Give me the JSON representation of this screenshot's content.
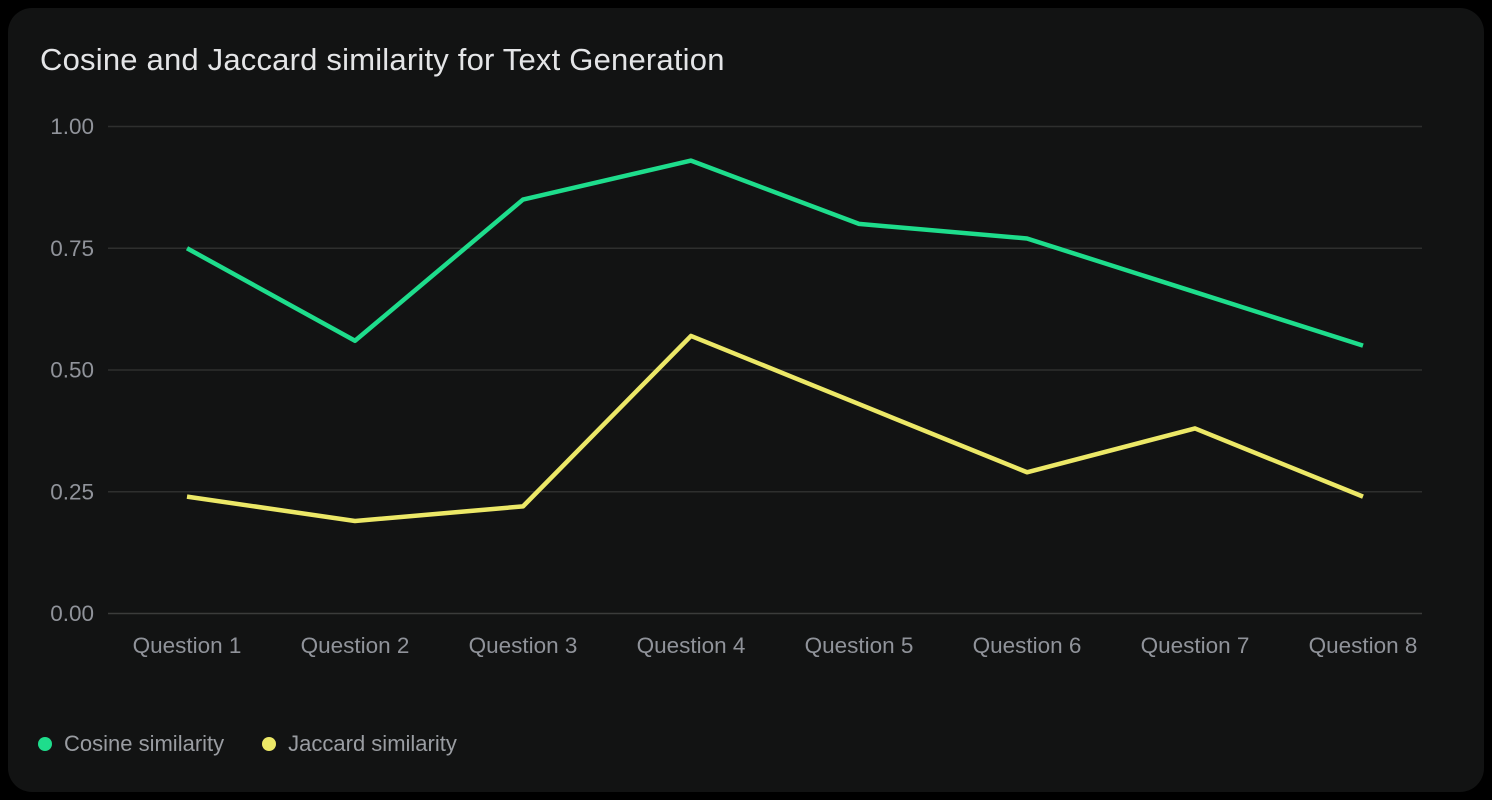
{
  "chart_data": {
    "type": "line",
    "title": "Cosine and Jaccard similarity for Text Generation",
    "categories": [
      "Question 1",
      "Question 2",
      "Question 3",
      "Question 4",
      "Question 5",
      "Question 6",
      "Question 7",
      "Question 8"
    ],
    "series": [
      {
        "name": "Cosine similarity",
        "color": "#1edd8c",
        "values": [
          0.75,
          0.56,
          0.85,
          0.93,
          0.8,
          0.77,
          0.66,
          0.55
        ]
      },
      {
        "name": "Jaccard similarity",
        "color": "#ece867",
        "values": [
          0.24,
          0.19,
          0.22,
          0.57,
          0.43,
          0.29,
          0.38,
          0.24
        ]
      }
    ],
    "ylim": [
      0,
      1
    ],
    "y_ticks": [
      "0.00",
      "0.25",
      "0.50",
      "0.75",
      "1.00"
    ],
    "grid": "horizontal",
    "legend_position": "bottom-left"
  },
  "colors": {
    "page_background": "#000000",
    "card_background": "#121313",
    "title_text": "#e4e5e7",
    "axis_text": "#90939a",
    "gridline": "#2e2f2e",
    "zero_line": "#3b3c3b",
    "legend_text": "#9a9da2"
  }
}
